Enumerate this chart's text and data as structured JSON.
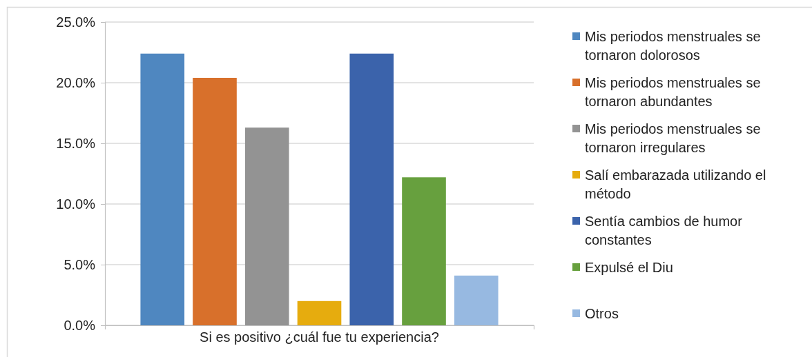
{
  "chart_data": {
    "type": "bar",
    "categories": [
      "Si es positivo ¿cuál fue tu experiencia?"
    ],
    "series": [
      {
        "name": "Mis periodos menstruales se tornaron dolorosos",
        "color": "#4f87c0",
        "values": [
          22.4
        ]
      },
      {
        "name": "Mis periodos menstruales se tornaron abundantes",
        "color": "#d8702b",
        "values": [
          20.4
        ]
      },
      {
        "name": "Mis periodos menstruales se tornaron irregulares",
        "color": "#939393",
        "values": [
          16.3
        ]
      },
      {
        "name": "Salí embarazada utilizando el método",
        "color": "#e6ac0e",
        "values": [
          2.0
        ]
      },
      {
        "name": "Sentía cambios de humor constantes",
        "color": "#3b63ab",
        "values": [
          22.4
        ]
      },
      {
        "name": "Expulsé el Diu",
        "color": "#67a03e",
        "values": [
          12.2
        ]
      },
      {
        "name": "Otros",
        "color": "#97b9e1",
        "values": [
          4.1
        ]
      }
    ],
    "ylim": [
      0,
      25
    ],
    "yticks": [
      {
        "value": 0,
        "label": "0.0%"
      },
      {
        "value": 5,
        "label": "5.0%"
      },
      {
        "value": 10,
        "label": "10.0%"
      },
      {
        "value": 15,
        "label": "15.0%"
      },
      {
        "value": 20,
        "label": "20.0%"
      },
      {
        "value": 25,
        "label": "25.0%"
      }
    ],
    "grid": "y",
    "legend": "right"
  }
}
